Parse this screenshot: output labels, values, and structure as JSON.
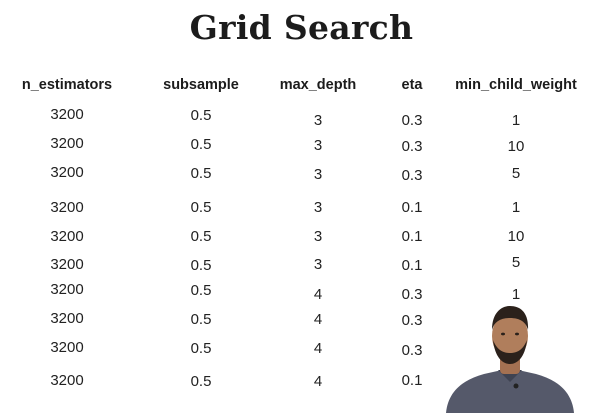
{
  "title": "Grid Search",
  "columns": [
    "n_estimators",
    "subsample",
    "max_depth",
    "eta",
    "min_child_weight"
  ],
  "rows": [
    [
      "3200",
      "0.5",
      "3",
      "0.3",
      "1"
    ],
    [
      "3200",
      "0.5",
      "3",
      "0.3",
      "10"
    ],
    [
      "3200",
      "0.5",
      "3",
      "0.3",
      "5"
    ],
    [
      "3200",
      "0.5",
      "3",
      "0.1",
      "1"
    ],
    [
      "3200",
      "0.5",
      "3",
      "0.1",
      "10"
    ],
    [
      "3200",
      "0.5",
      "3",
      "0.1",
      "5"
    ],
    [
      "3200",
      "0.5",
      "4",
      "0.3",
      "1"
    ],
    [
      "3200",
      "0.5",
      "4",
      "0.3",
      ""
    ],
    [
      "3200",
      "0.5",
      "4",
      "0.3",
      ""
    ],
    [
      "3200",
      "0.5",
      "4",
      "0.1",
      ""
    ]
  ],
  "colors": {
    "background": "#ffffff",
    "text": "#1c1c1c",
    "presenter_shirt": "#55596a",
    "presenter_skin": "#b07e5c",
    "presenter_hair": "#2b211b"
  }
}
